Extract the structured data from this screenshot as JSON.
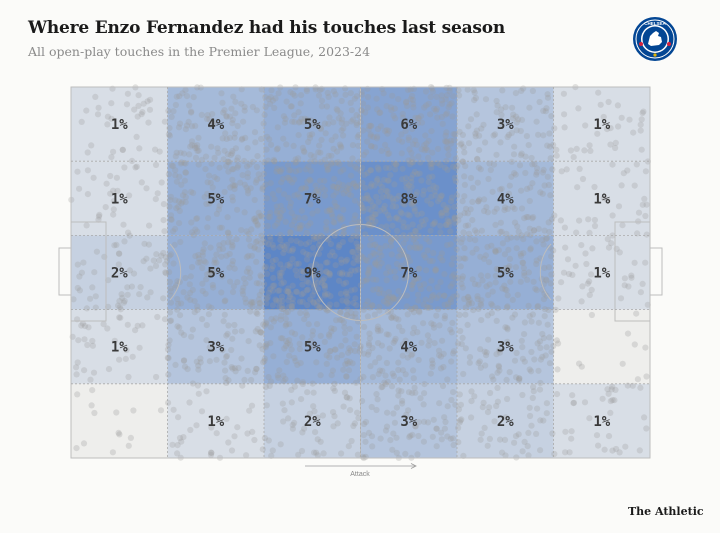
{
  "header": {
    "title": "Where Enzo Fernandez had his touches last season",
    "subtitle": "All open-play touches in the Premier League, 2023-24"
  },
  "brand": "The Athletic",
  "crest": {
    "text": "CHELSEA",
    "icon": "chelsea-lion-crest-icon",
    "color": "#034694"
  },
  "chart_data": {
    "type": "heatmap",
    "title": "Where Enzo Fernandez had his touches last season",
    "subtitle": "All open-play touches in the Premier League, 2023-24",
    "direction_label": "Attack",
    "columns": 6,
    "rows": 5,
    "value_unit": "%",
    "cells": [
      [
        "1%",
        "4%",
        "5%",
        "6%",
        "3%",
        "1%"
      ],
      [
        "1%",
        "5%",
        "7%",
        "8%",
        "4%",
        "1%"
      ],
      [
        "2%",
        "5%",
        "9%",
        "7%",
        "5%",
        "1%"
      ],
      [
        "1%",
        "3%",
        "5%",
        "4%",
        "3%",
        ""
      ],
      [
        "",
        "1%",
        "2%",
        "3%",
        "2%",
        "1%"
      ]
    ],
    "values": [
      [
        1,
        4,
        5,
        6,
        3,
        1
      ],
      [
        1,
        5,
        7,
        8,
        4,
        1
      ],
      [
        2,
        5,
        9,
        7,
        5,
        1
      ],
      [
        1,
        3,
        5,
        4,
        3,
        0
      ],
      [
        0,
        1,
        2,
        3,
        2,
        1
      ]
    ],
    "colors": {
      "low": "#eeeeec",
      "high": "#5d86c6",
      "pitch_line": "#bdbdbd",
      "dots": "#9c9c9c"
    }
  }
}
